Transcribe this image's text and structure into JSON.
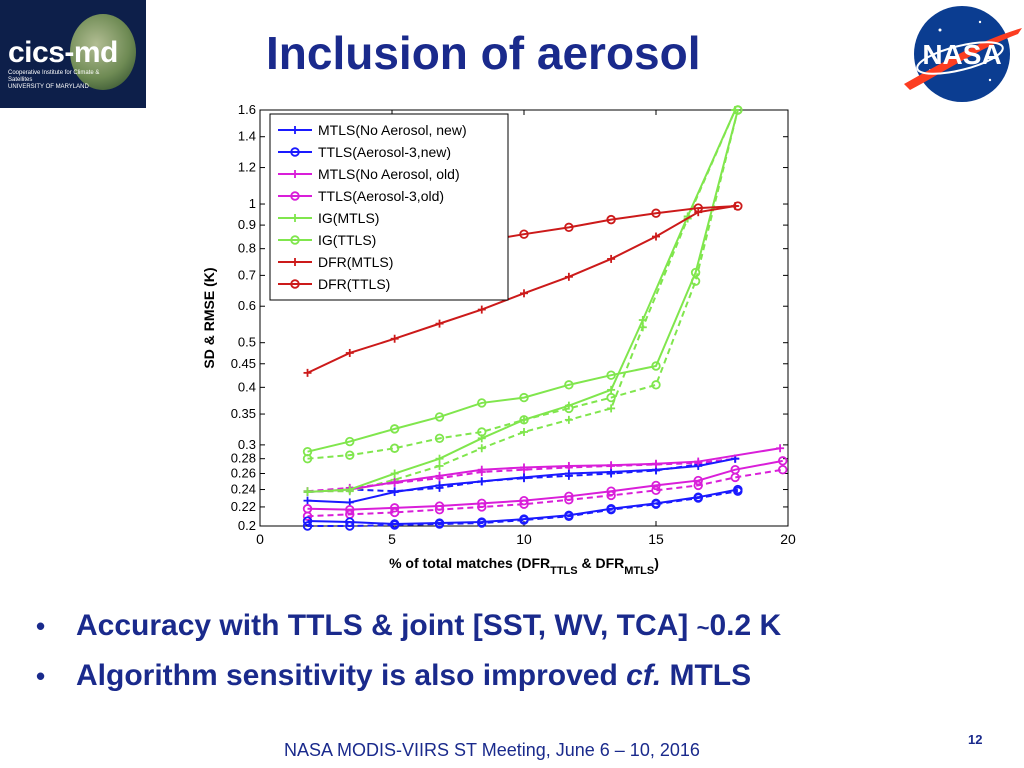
{
  "logo": {
    "text": "cics-md",
    "sub1": "Cooperative Institute for Climate & Satellites",
    "sub2": "UNIVERSITY OF MARYLAND"
  },
  "nasa_logo": {
    "text": "NASA"
  },
  "slide": {
    "title": "Inclusion of aerosol",
    "bullets": [
      {
        "pre": "Accuracy with TTLS & joint [SST, WV, TCA] ",
        "tilde": "~",
        "post": "0.2 K"
      },
      {
        "pre": "Algorithm sensitivity is also improved ",
        "italic": "cf.",
        "post": " MTLS"
      }
    ],
    "footer": "NASA MODIS-VIIRS ST Meeting, June 6 – 10, 2016",
    "page_number": "12"
  },
  "chart_data": {
    "type": "line",
    "xlabel_parts": [
      "% of total matches (DFR",
      "TTLS",
      " & DFR",
      "MTLS",
      ")"
    ],
    "ylabel": "SD & RMSE (K)",
    "xlim": [
      0,
      20
    ],
    "ylim": [
      0.2,
      1.6
    ],
    "y_scale": "log",
    "xticks": [
      0,
      5,
      10,
      15,
      20
    ],
    "yticks": [
      0.2,
      0.22,
      0.24,
      0.26,
      0.28,
      0.3,
      0.35,
      0.4,
      0.45,
      0.5,
      0.6,
      0.7,
      0.8,
      0.9,
      1,
      1.2,
      1.4,
      1.6
    ],
    "ytick_labels": [
      "0.2",
      "0.22",
      "0.24",
      "0.26",
      "0.28",
      "0.3",
      "0.35",
      "0.4",
      "0.45",
      "0.5",
      "0.6",
      "0.7",
      "0.8",
      "0.9",
      "1",
      "1.2",
      "1.4",
      "1.6"
    ],
    "legend_position": "top-left",
    "colors": {
      "mtls_new": "#1a1aff",
      "ttls_new": "#1a1aff",
      "mtls_old": "#d91ed9",
      "ttls_old": "#d91ed9",
      "ig": "#80e64d",
      "dfr": "#cc1a1a"
    },
    "series": [
      {
        "name": "MTLS(No Aerosol, new)",
        "color": "#1a1aff",
        "marker": "+",
        "x": [
          1.8,
          3.4,
          5.1,
          6.8,
          8.4,
          10,
          11.7,
          13.3,
          15,
          16.6,
          18
        ],
        "y": [
          0.227,
          0.225,
          0.237,
          0.245,
          0.25,
          0.255,
          0.26,
          0.262,
          0.265,
          0.27,
          0.28
        ]
      },
      {
        "name": "TTLS(Aerosol-3,new)",
        "color": "#1a1aff",
        "marker": "o",
        "x": [
          1.8,
          3.4,
          5.1,
          6.8,
          8.4,
          10,
          11.7,
          13.3,
          15,
          16.6,
          18.1
        ],
        "y": [
          0.205,
          0.204,
          0.202,
          0.203,
          0.204,
          0.207,
          0.211,
          0.218,
          0.224,
          0.231,
          0.24
        ]
      },
      {
        "name": "MTLS(No Aerosol, old)",
        "color": "#d91ed9",
        "marker": "+",
        "x": [
          1.8,
          3.4,
          5.1,
          6.8,
          8.4,
          10,
          11.7,
          13.3,
          15,
          16.6,
          19.7
        ],
        "y": [
          0.237,
          0.24,
          0.249,
          0.257,
          0.265,
          0.268,
          0.27,
          0.271,
          0.273,
          0.276,
          0.295
        ]
      },
      {
        "name": "TTLS(Aerosol-3,old)",
        "color": "#d91ed9",
        "marker": "o",
        "x": [
          1.8,
          3.4,
          5.1,
          6.8,
          8.4,
          10,
          11.7,
          13.3,
          15,
          16.6,
          18,
          19.8
        ],
        "y": [
          0.218,
          0.217,
          0.219,
          0.221,
          0.224,
          0.227,
          0.232,
          0.238,
          0.245,
          0.251,
          0.265,
          0.277
        ]
      },
      {
        "name": "IG(MTLS)",
        "color": "#80e64d",
        "marker": "+",
        "x": [
          1.8,
          3.4,
          5.1,
          6.8,
          8.4,
          10,
          11.7,
          13.3,
          14.5,
          16.2,
          18
        ],
        "y": [
          0.237,
          0.24,
          0.26,
          0.28,
          0.31,
          0.34,
          0.365,
          0.395,
          0.56,
          0.94,
          1.6
        ]
      },
      {
        "name": "IG(TTLS)",
        "color": "#80e64d",
        "marker": "o",
        "x": [
          1.8,
          3.4,
          5.1,
          6.8,
          8.4,
          10,
          11.7,
          13.3,
          15,
          16.5,
          18.1
        ],
        "y": [
          0.29,
          0.305,
          0.325,
          0.345,
          0.37,
          0.38,
          0.405,
          0.425,
          0.445,
          0.71,
          1.6
        ]
      },
      {
        "name": "DFR(MTLS)",
        "color": "#cc1a1a",
        "marker": "+",
        "x": [
          1.8,
          3.4,
          5.1,
          6.8,
          8.4,
          10,
          11.7,
          13.3,
          15,
          16.6,
          18
        ],
        "y": [
          0.43,
          0.475,
          0.51,
          0.55,
          0.59,
          0.64,
          0.695,
          0.76,
          0.85,
          0.96,
          0.99
        ]
      },
      {
        "name": "DFR(TTLS)",
        "color": "#cc1a1a",
        "marker": "o",
        "x": [
          1.8,
          3.4,
          5.1,
          6.8,
          8.4,
          10,
          11.7,
          13.3,
          15,
          16.6,
          18.1
        ],
        "y": [
          0.685,
          0.74,
          0.77,
          0.8,
          0.83,
          0.86,
          0.89,
          0.925,
          0.955,
          0.98,
          0.99
        ]
      }
    ],
    "dashed_series": [
      {
        "color": "#1a1aff",
        "marker": "+",
        "x": [
          1.8,
          3.4,
          5.1,
          6.8,
          8.4,
          10,
          11.7,
          13.3,
          15,
          16.6,
          18
        ],
        "y": [
          0.237,
          0.24,
          0.238,
          0.242,
          0.25,
          0.254,
          0.257,
          0.26,
          0.264,
          0.272,
          0.28
        ]
      },
      {
        "color": "#1a1aff",
        "marker": "o",
        "x": [
          1.8,
          3.4,
          5.1,
          6.8,
          8.4,
          10,
          11.7,
          13.3,
          15,
          16.6,
          18.1
        ],
        "y": [
          0.2,
          0.2,
          0.201,
          0.202,
          0.203,
          0.206,
          0.21,
          0.217,
          0.223,
          0.23,
          0.238
        ]
      },
      {
        "color": "#d91ed9",
        "marker": "+",
        "x": [
          1.8,
          3.4,
          5.1,
          6.8,
          8.4,
          10,
          11.7,
          13.3,
          15,
          16.6,
          18
        ],
        "y": [
          0.238,
          0.242,
          0.248,
          0.254,
          0.262,
          0.265,
          0.268,
          0.27,
          0.272,
          0.274,
          0.28
        ]
      },
      {
        "color": "#d91ed9",
        "marker": "o",
        "x": [
          1.8,
          3.4,
          5.1,
          6.8,
          8.4,
          10,
          11.7,
          13.3,
          15,
          16.6,
          18,
          19.8
        ],
        "y": [
          0.21,
          0.212,
          0.214,
          0.217,
          0.22,
          0.223,
          0.228,
          0.233,
          0.239,
          0.245,
          0.255,
          0.265
        ]
      },
      {
        "color": "#80e64d",
        "marker": "+",
        "x": [
          1.8,
          3.4,
          5.1,
          6.8,
          8.4,
          10,
          11.7,
          13.3,
          14.5,
          16.2,
          18
        ],
        "y": [
          0.238,
          0.238,
          0.252,
          0.27,
          0.295,
          0.32,
          0.34,
          0.36,
          0.54,
          0.93,
          1.6
        ]
      },
      {
        "color": "#80e64d",
        "marker": "o",
        "x": [
          1.8,
          3.4,
          5.1,
          6.8,
          8.4,
          10,
          11.7,
          13.3,
          15,
          16.5,
          18.1
        ],
        "y": [
          0.28,
          0.285,
          0.295,
          0.31,
          0.32,
          0.34,
          0.36,
          0.38,
          0.405,
          0.68,
          1.6
        ]
      }
    ]
  }
}
